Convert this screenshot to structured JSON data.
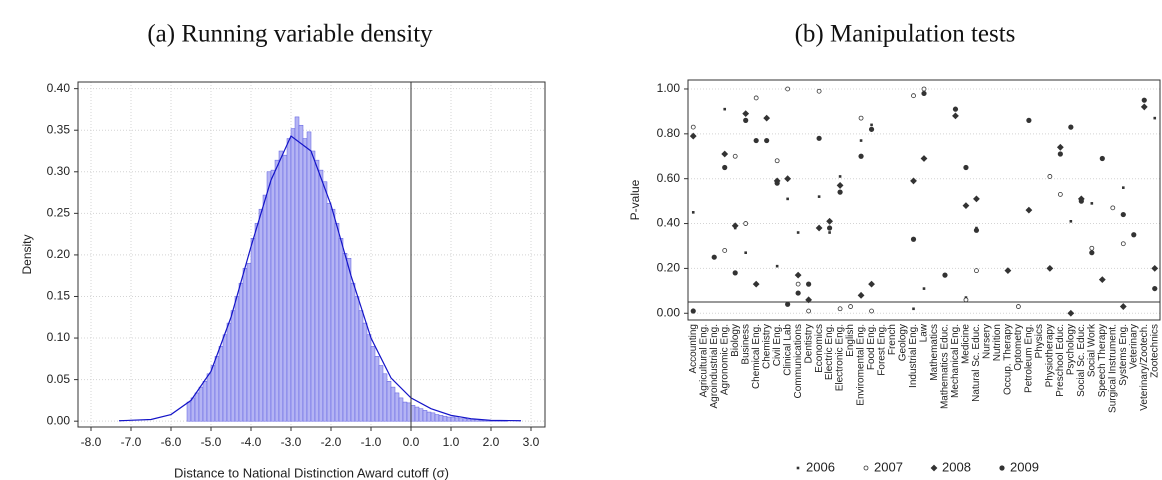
{
  "chart_data": [
    {
      "type": "histogram",
      "title": "(a) Running variable density",
      "xlabel": "Distance to National Distinction Award cutoff (σ)",
      "ylabel": "Density",
      "bins": [
        -5.6,
        -5.5,
        -5.4,
        -5.3,
        -5.2,
        -5.1,
        -5.0,
        -4.9,
        -4.8,
        -4.7,
        -4.6,
        -4.5,
        -4.4,
        -4.3,
        -4.2,
        -4.1,
        -4.0,
        -3.9,
        -3.8,
        -3.7,
        -3.6,
        -3.5,
        -3.4,
        -3.3,
        -3.2,
        -3.1,
        -3.0,
        -2.9,
        -2.8,
        -2.7,
        -2.6,
        -2.5,
        -2.4,
        -2.3,
        -2.2,
        -2.1,
        -2.0,
        -1.9,
        -1.8,
        -1.7,
        -1.6,
        -1.5,
        -1.4,
        -1.3,
        -1.2,
        -1.1,
        -1.0,
        -0.9,
        -0.8,
        -0.7,
        -0.6,
        -0.5,
        -0.4,
        -0.3,
        -0.2,
        -0.1,
        0.0,
        0.1,
        0.2,
        0.3,
        0.4,
        0.5,
        0.6,
        0.7,
        0.8,
        0.9,
        1.0,
        1.1,
        1.2,
        1.3,
        1.4,
        1.5,
        1.6,
        1.7,
        1.8,
        1.9,
        2.0,
        2.1,
        2.2,
        2.3,
        2.4
      ],
      "values": [
        0.023,
        0.028,
        0.034,
        0.041,
        0.048,
        0.057,
        0.067,
        0.078,
        0.09,
        0.104,
        0.118,
        0.133,
        0.15,
        0.166,
        0.184,
        0.19,
        0.22,
        0.238,
        0.255,
        0.272,
        0.3,
        0.302,
        0.314,
        0.325,
        0.32,
        0.34,
        0.352,
        0.366,
        0.356,
        0.34,
        0.348,
        0.325,
        0.314,
        0.302,
        0.288,
        0.262,
        0.255,
        0.238,
        0.22,
        0.202,
        0.196,
        0.166,
        0.15,
        0.133,
        0.118,
        0.104,
        0.09,
        0.078,
        0.067,
        0.057,
        0.048,
        0.041,
        0.034,
        0.028,
        0.023,
        0.022,
        0.019,
        0.017,
        0.015,
        0.013,
        0.011,
        0.01,
        0.008,
        0.007,
        0.006,
        0.005,
        0.005,
        0.004,
        0.003,
        0.003,
        0.002,
        0.002,
        0.002,
        0.001,
        0.001,
        0.001,
        0.001,
        0.001,
        0.001,
        0.001
      ],
      "color": "#b4b4f4",
      "edgecolor": "#5a5ae0",
      "density_line": {
        "color": "#1414c8",
        "x": [
          -7.3,
          -6.5,
          -6.0,
          -5.5,
          -5.0,
          -4.5,
          -4.0,
          -3.5,
          -3.0,
          -2.5,
          -2.0,
          -1.5,
          -1.0,
          -0.5,
          0.0,
          0.5,
          1.0,
          1.5,
          2.0,
          2.75
        ],
        "y": [
          0.0005,
          0.002,
          0.008,
          0.025,
          0.06,
          0.125,
          0.21,
          0.29,
          0.343,
          0.325,
          0.26,
          0.175,
          0.1,
          0.052,
          0.028,
          0.015,
          0.007,
          0.003,
          0.001,
          0.0005
        ]
      },
      "vline": 0,
      "xlim": [
        -8.325,
        3.35
      ],
      "ylim": [
        -0.007,
        0.408
      ],
      "xticks": [
        {
          "value": -8,
          "label": "-8.0"
        },
        {
          "value": -7,
          "label": "-7.0"
        },
        {
          "value": -6,
          "label": "-6.0"
        },
        {
          "value": -5,
          "label": "-5.0"
        },
        {
          "value": -4,
          "label": "-4.0"
        },
        {
          "value": -3,
          "label": "-3.0"
        },
        {
          "value": -2,
          "label": "-2.0"
        },
        {
          "value": -1,
          "label": "-1.0"
        },
        {
          "value": 0,
          "label": "0.0"
        },
        {
          "value": 1,
          "label": "1.0"
        },
        {
          "value": 2,
          "label": "2.0"
        },
        {
          "value": 3,
          "label": "3.0"
        }
      ],
      "yticks": [
        {
          "value": 0,
          "label": "0.00"
        },
        {
          "value": 0.05,
          "label": "0.05"
        },
        {
          "value": 0.1,
          "label": "0.10"
        },
        {
          "value": 0.15,
          "label": "0.15"
        },
        {
          "value": 0.2,
          "label": "0.20"
        },
        {
          "value": 0.25,
          "label": "0.25"
        },
        {
          "value": 0.3,
          "label": "0.30"
        },
        {
          "value": 0.35,
          "label": "0.35"
        },
        {
          "value": 0.4,
          "label": "0.40"
        }
      ],
      "grid": true
    },
    {
      "type": "scatter",
      "title": "(b) Manipulation tests",
      "ylabel": "P-value",
      "categories": [
        "Accounting",
        "Agricultural Eng.",
        "Agroindustrial Eng.",
        "Agronomic Eng.",
        "Biology",
        "Business",
        "Chemical Eng.",
        "Chemistry",
        "Civil Eng.",
        "Clinical Lab",
        "Communications",
        "Dentistry",
        "Economics",
        "Electric Eng.",
        "Electronic Eng.",
        "English",
        "Enviromental Eng.",
        "Food Eng.",
        "Forest Eng.",
        "French",
        "Geology",
        "Industrial Eng.",
        "Law",
        "Mathematics",
        "Mathematics Educ.",
        "Mechanical Eng.",
        "Medicine",
        "Natural Sc. Educ.",
        "Nursery",
        "Nutrition",
        "Occup. Therapy",
        "Optometry",
        "Petroleum Eng.",
        "Physics",
        "Physiotherapy",
        "Preschool Educ.",
        "Psychology",
        "Social Sc. Educ.",
        "Social Work",
        "Speech Therapy",
        "Surgical Instrument.",
        "Systems Eng.",
        "Veterinary",
        "Veterinary/Zootech.",
        "Zootechnics"
      ],
      "series": [
        {
          "name": "2006",
          "color": "#333333",
          "marker": "square",
          "values": [
            0.45,
            null,
            null,
            0.91,
            0.38,
            0.27,
            null,
            null,
            0.21,
            0.51,
            0.36,
            null,
            0.52,
            0.36,
            0.61,
            null,
            0.77,
            0.84,
            null,
            null,
            null,
            0.02,
            0.11,
            null,
            null,
            null,
            0.07,
            0.38,
            null,
            null,
            null,
            null,
            null,
            null,
            null,
            null,
            0.41,
            null,
            0.49,
            null,
            null,
            0.56,
            null,
            null,
            0.87
          ]
        },
        {
          "name": "2007",
          "color": "#333333",
          "marker": "circle-open",
          "values": [
            0.83,
            null,
            null,
            0.28,
            0.7,
            0.4,
            0.96,
            null,
            0.68,
            1,
            0.13,
            0.01,
            0.99,
            null,
            0.02,
            0.03,
            0.87,
            0.01,
            null,
            null,
            null,
            0.97,
            1,
            null,
            null,
            null,
            0.06,
            0.19,
            null,
            null,
            null,
            0.03,
            null,
            null,
            0.61,
            0.53,
            null,
            null,
            0.29,
            null,
            0.47,
            0.31,
            null,
            null,
            null
          ]
        },
        {
          "name": "2008",
          "color": "#333333",
          "marker": "diamond",
          "values": [
            0.79,
            null,
            null,
            0.71,
            0.39,
            0.89,
            0.13,
            0.87,
            0.59,
            0.6,
            0.17,
            0.06,
            0.38,
            0.41,
            0.57,
            null,
            0.08,
            0.13,
            null,
            null,
            null,
            0.59,
            0.69,
            null,
            null,
            0.88,
            0.48,
            0.51,
            null,
            null,
            0.19,
            null,
            0.46,
            null,
            0.2,
            0.74,
            0,
            0.51,
            null,
            0.15,
            null,
            0.03,
            null,
            0.92,
            0.2
          ]
        },
        {
          "name": "2009",
          "color": "#333333",
          "marker": "circle",
          "values": [
            0.01,
            null,
            0.25,
            0.65,
            0.18,
            0.86,
            0.77,
            0.77,
            0.58,
            0.04,
            0.09,
            0.13,
            0.78,
            0.38,
            0.54,
            null,
            0.7,
            0.82,
            null,
            null,
            null,
            0.33,
            0.98,
            null,
            0.17,
            0.91,
            0.65,
            0.37,
            null,
            null,
            null,
            null,
            0.86,
            null,
            null,
            0.71,
            0.83,
            0.5,
            0.27,
            0.69,
            null,
            0.44,
            0.35,
            0.95,
            0.11
          ]
        }
      ],
      "hline": 0.05,
      "ylim": [
        -0.03,
        1.04
      ],
      "yticks": [
        {
          "value": 0,
          "label": "0.00"
        },
        {
          "value": 0.2,
          "label": "0.20"
        },
        {
          "value": 0.4,
          "label": "0.40"
        },
        {
          "value": 0.6,
          "label": "0.60"
        },
        {
          "value": 0.8,
          "label": "0.80"
        },
        {
          "value": 1,
          "label": "1.00"
        }
      ],
      "grid": true,
      "legend": "bottom"
    }
  ]
}
